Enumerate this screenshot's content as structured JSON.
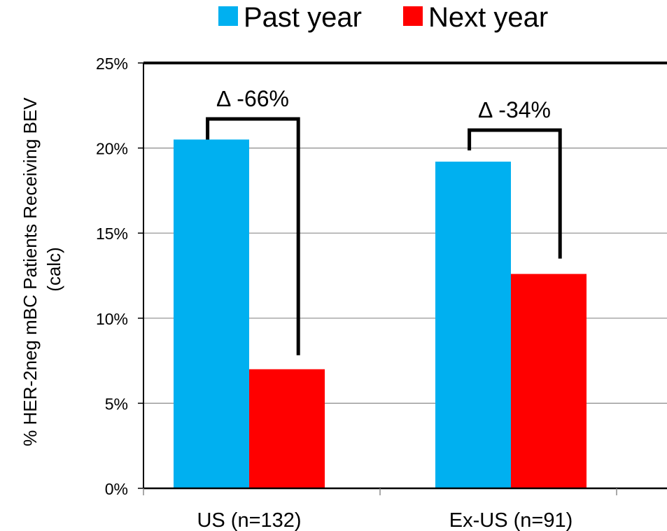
{
  "chart_data": {
    "type": "bar",
    "categories": [
      "US (n=132)",
      "Ex-US (n=91)"
    ],
    "series": [
      {
        "name": "Past year",
        "values": [
          20.5,
          19.2
        ],
        "color": "#00B0F0"
      },
      {
        "name": "Next year",
        "values": [
          7.0,
          12.6
        ],
        "color": "#FF0000"
      }
    ],
    "ylabel_lines": [
      "% HER-2neg mBC Patients Receiving BEV",
      "(calc)"
    ],
    "ylim": [
      0,
      25
    ],
    "yticks": [
      "0%",
      "5%",
      "10%",
      "15%",
      "20%",
      "25%"
    ],
    "ytick_values": [
      0,
      5,
      10,
      15,
      20,
      25
    ],
    "grid": true,
    "legend_position": "top",
    "annotations": [
      {
        "text": "∆ -66%",
        "category": "US (n=132)"
      },
      {
        "text": "∆ -34%",
        "category": "Ex-US (n=91)"
      }
    ]
  }
}
